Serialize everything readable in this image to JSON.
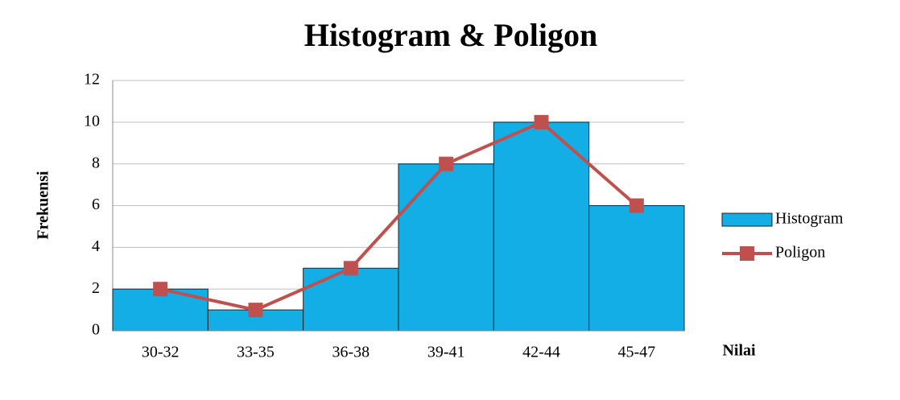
{
  "chart_data": {
    "type": "bar",
    "title": "Histogram & Poligon",
    "y_label": "Frekuensi",
    "x_label": "Nilai",
    "categories": [
      "30-32",
      "33-35",
      "36-38",
      "39-41",
      "42-44",
      "45-47"
    ],
    "series": [
      {
        "name": "Histogram",
        "type": "bar",
        "color": "#14aee6",
        "values": [
          2,
          1,
          3,
          8,
          10,
          6
        ]
      },
      {
        "name": "Poligon",
        "type": "line",
        "color": "#c0504d",
        "values": [
          2,
          1,
          3,
          8,
          10,
          6
        ]
      }
    ],
    "ylim": [
      0,
      12
    ],
    "yticks": [
      0,
      2,
      4,
      6,
      8,
      10,
      12
    ],
    "grid": true,
    "legend": "right"
  }
}
